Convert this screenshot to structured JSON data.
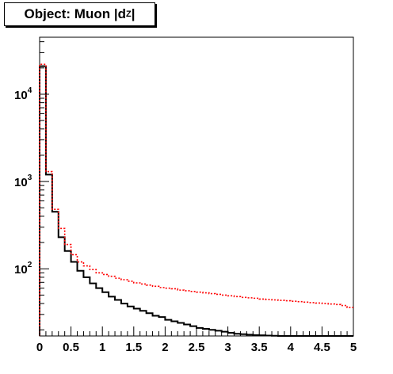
{
  "title": {
    "main": "Object: Muon |d",
    "subscript": "Z",
    "suffix": "|"
  },
  "chart_data": {
    "type": "histogram",
    "title": "Object: Muon |d_Z|",
    "xlabel": "",
    "ylabel": "",
    "xlim": [
      0,
      5
    ],
    "ylim": [
      17,
      45000
    ],
    "yscale": "log",
    "grid": false,
    "legend": "none",
    "bin_width": 0.1,
    "x_tick_labels": [
      "0",
      "0.5",
      "1",
      "1.5",
      "2",
      "2.5",
      "3",
      "3.5",
      "4",
      "4.5",
      "5"
    ],
    "y_tick_labels": [
      {
        "base": "10",
        "exp": "2",
        "value": 100
      },
      {
        "base": "10",
        "exp": "3",
        "value": 1000
      },
      {
        "base": "10",
        "exp": "4",
        "value": 10000
      }
    ],
    "series": [
      {
        "color": "#000000",
        "style": "solid-step",
        "values": [
          21000,
          1200,
          450,
          230,
          160,
          120,
          95,
          80,
          68,
          60,
          54,
          48,
          44,
          40,
          37,
          35,
          33,
          31,
          29,
          28,
          26,
          25,
          24,
          23,
          22,
          21,
          20.5,
          20,
          19.5,
          19,
          18.5,
          18,
          17.8,
          17.6,
          17.4,
          17.3,
          17.2,
          17.1,
          17,
          17,
          17,
          17,
          17,
          17,
          17,
          17,
          17,
          17,
          17,
          17
        ]
      },
      {
        "color": "#ff0000",
        "style": "dotted-step",
        "values": [
          22000,
          1300,
          480,
          290,
          190,
          145,
          120,
          108,
          98,
          90,
          86,
          82,
          78,
          75,
          72,
          69,
          67,
          65,
          63,
          61,
          60,
          59,
          57,
          56,
          55,
          54,
          53,
          52,
          51,
          50,
          49,
          48,
          47,
          46.5,
          46,
          45,
          44.5,
          44,
          43.5,
          43,
          42.5,
          42,
          41.5,
          41,
          40.5,
          40,
          39.5,
          39,
          38,
          36
        ]
      }
    ]
  }
}
